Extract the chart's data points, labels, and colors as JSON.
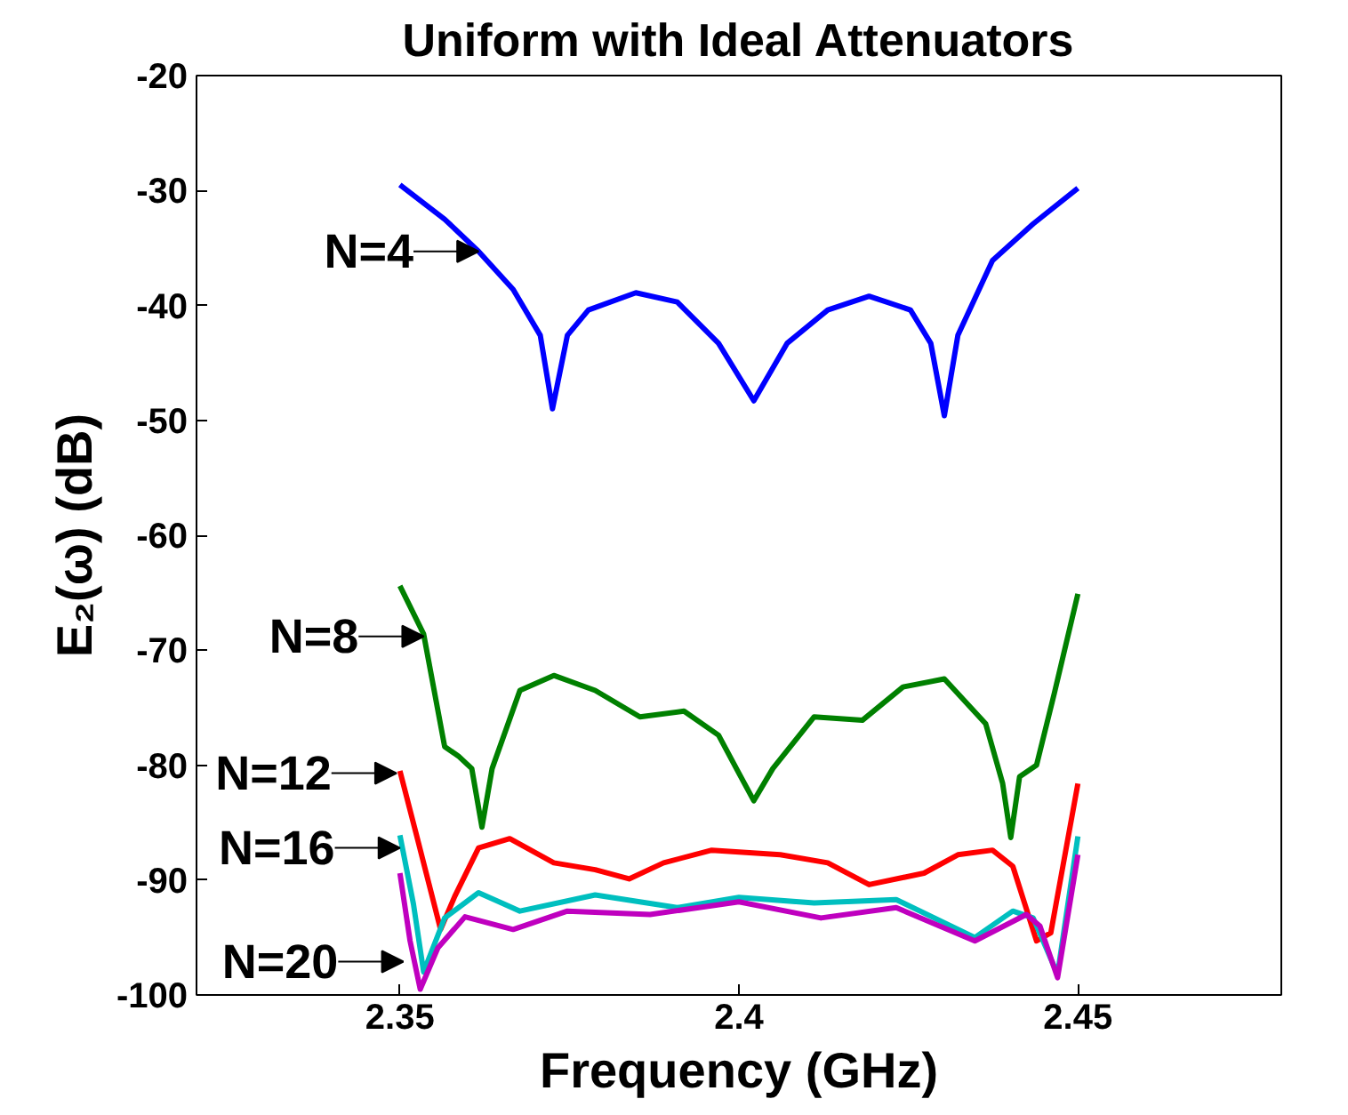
{
  "chart_data": {
    "type": "line",
    "title": "Uniform with Ideal Attenuators",
    "xlabel": "Frequency (GHz)",
    "ylabel": "E₂(ω) (dB)",
    "xlim": [
      2.32,
      2.48
    ],
    "ylim": [
      -100,
      -20
    ],
    "xticks": [
      2.35,
      2.4,
      2.45
    ],
    "yticks": [
      -100,
      -90,
      -80,
      -70,
      -60,
      -50,
      -40,
      -30,
      -20
    ],
    "grid": false,
    "line_style": "solid",
    "marker": "none",
    "series": [
      {
        "color": "#0000ff",
        "x": [
          2.35,
          2.3566,
          2.3616,
          2.3667,
          2.3707,
          2.3725,
          2.3747,
          2.3778,
          2.3848,
          2.3909,
          2.397,
          2.4022,
          2.4071,
          2.4131,
          2.4192,
          2.4253,
          2.4283,
          2.4303,
          2.4323,
          2.4374,
          2.4434,
          2.45
        ],
        "values": [
          -29.5,
          -32.5,
          -35.3,
          -38.6,
          -42.6,
          -49,
          -42.6,
          -40.4,
          -38.9,
          -39.7,
          -43.3,
          -48.3,
          -43.3,
          -40.4,
          -39.2,
          -40.4,
          -43.3,
          -49.6,
          -42.6,
          -36.1,
          -32.9,
          -29.8
        ]
      },
      {
        "color": "#008000",
        "x": [
          2.35,
          2.3535,
          2.3566,
          2.3586,
          2.3606,
          2.3621,
          2.3636,
          2.3677,
          2.3727,
          2.3788,
          2.3854,
          2.3919,
          2.397,
          2.4,
          2.4022,
          2.405,
          2.4111,
          2.4182,
          2.4242,
          2.4303,
          2.4364,
          2.4389,
          2.4401,
          2.4414,
          2.4439,
          2.4465,
          2.45
        ],
        "values": [
          -64.4,
          -68.6,
          -78.4,
          -79.2,
          -80.3,
          -85.4,
          -80.3,
          -73.5,
          -72.2,
          -73.5,
          -75.8,
          -75.3,
          -77.4,
          -80.7,
          -83.1,
          -80.3,
          -75.8,
          -76.1,
          -73.2,
          -72.5,
          -76.4,
          -81.6,
          -86.3,
          -81,
          -80,
          -73.8,
          -65.1
        ]
      },
      {
        "color": "#ff0000",
        "x": [
          2.35,
          2.3525,
          2.356,
          2.3581,
          2.3616,
          2.3662,
          2.3727,
          2.3788,
          2.3838,
          2.3889,
          2.396,
          2.4061,
          2.4131,
          2.4192,
          2.4273,
          2.4323,
          2.4374,
          2.4404,
          2.4439,
          2.446,
          2.45
        ],
        "values": [
          -80.5,
          -86.2,
          -94.3,
          -91.4,
          -87.2,
          -86.4,
          -88.5,
          -89.1,
          -89.9,
          -88.5,
          -87.4,
          -87.8,
          -88.5,
          -90.4,
          -89.4,
          -87.8,
          -87.4,
          -88.8,
          -95.3,
          -94.6,
          -81.6
        ]
      },
      {
        "color": "#00bfbf",
        "x": [
          2.35,
          2.352,
          2.3535,
          2.3566,
          2.3616,
          2.3677,
          2.3788,
          2.3909,
          2.4,
          2.4111,
          2.4232,
          2.4348,
          2.4404,
          2.4434,
          2.447,
          2.45
        ],
        "values": [
          -86.1,
          -92.1,
          -98,
          -93.3,
          -91.1,
          -92.7,
          -91.3,
          -92.4,
          -91.5,
          -92,
          -91.7,
          -95,
          -92.7,
          -93.3,
          -98.2,
          -86.2
        ]
      },
      {
        "color": "#bf00bf",
        "x": [
          2.35,
          2.3515,
          2.353,
          2.3556,
          2.3596,
          2.3667,
          2.3747,
          2.3869,
          2.4,
          2.4121,
          2.4232,
          2.4348,
          2.4424,
          2.4444,
          2.447,
          2.45
        ],
        "values": [
          -89.4,
          -95.3,
          -99.5,
          -95.9,
          -93.2,
          -94.3,
          -92.7,
          -93,
          -91.9,
          -93.3,
          -92.4,
          -95.3,
          -93,
          -94,
          -98.5,
          -87.8
        ]
      }
    ],
    "annotations": [
      {
        "text": "N=4",
        "x": 2.3616,
        "y": -35.3
      },
      {
        "text": "N=8",
        "x": 2.3535,
        "y": -68.8
      },
      {
        "text": "N=12",
        "x": 2.3495,
        "y": -80.7
      },
      {
        "text": "N=16",
        "x": 2.35,
        "y": -87.2
      },
      {
        "text": "N=20",
        "x": 2.3505,
        "y": -97.1
      }
    ]
  }
}
